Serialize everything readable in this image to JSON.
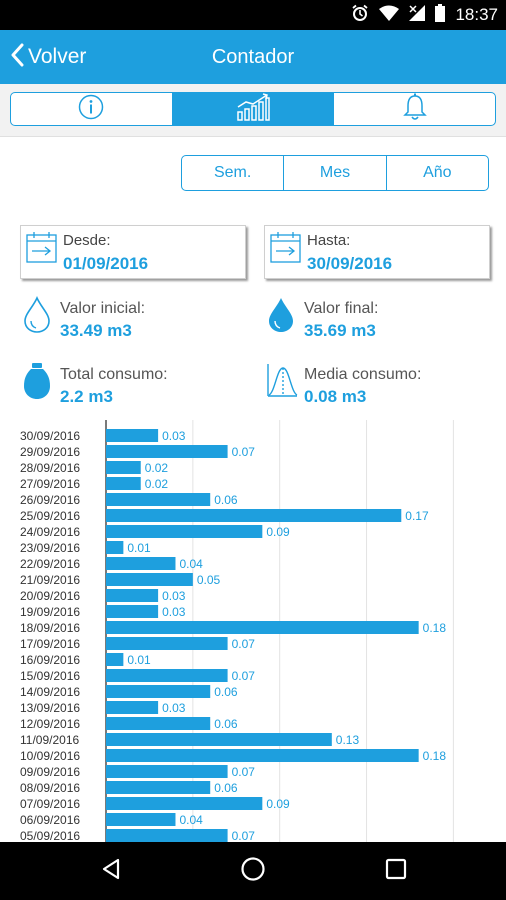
{
  "status_bar": {
    "time": "18:37"
  },
  "app_bar": {
    "back_label": "Volver",
    "title": "Contador"
  },
  "tabs": [
    {
      "name": "info-icon",
      "active": false
    },
    {
      "name": "chart-icon",
      "active": true
    },
    {
      "name": "bell-icon",
      "active": false
    }
  ],
  "period": {
    "week": "Sem.",
    "month": "Mes",
    "year": "Año"
  },
  "range": {
    "from_label": "Desde:",
    "from_value": "01/09/2016",
    "to_label": "Hasta:",
    "to_value": "30/09/2016"
  },
  "stats": {
    "initial_label": "Valor inicial:",
    "initial_value": "33.49 m3",
    "final_label": "Valor final:",
    "final_value": "35.69 m3",
    "total_label": "Total consumo:",
    "total_value": "2.2 m3",
    "average_label": "Media consumo:",
    "average_value": "0.08 m3"
  },
  "colors": {
    "accent": "#1e9fde",
    "bar": "#1e9fde"
  },
  "chart_data": {
    "type": "bar",
    "orientation": "horizontal",
    "categories": [
      "30/09/2016",
      "29/09/2016",
      "28/09/2016",
      "27/09/2016",
      "26/09/2016",
      "25/09/2016",
      "24/09/2016",
      "23/09/2016",
      "22/09/2016",
      "21/09/2016",
      "20/09/2016",
      "19/09/2016",
      "18/09/2016",
      "17/09/2016",
      "16/09/2016",
      "15/09/2016",
      "14/09/2016",
      "13/09/2016",
      "12/09/2016",
      "11/09/2016",
      "10/09/2016",
      "09/09/2016",
      "08/09/2016",
      "07/09/2016",
      "06/09/2016",
      "05/09/2016"
    ],
    "values": [
      0.03,
      0.07,
      0.02,
      0.02,
      0.06,
      0.17,
      0.09,
      0.01,
      0.04,
      0.05,
      0.03,
      0.03,
      0.18,
      0.07,
      0.01,
      0.07,
      0.06,
      0.03,
      0.06,
      0.13,
      0.18,
      0.07,
      0.06,
      0.09,
      0.04,
      0.07
    ],
    "value_labels": [
      "0.03",
      "0.07",
      "0.02",
      "0.02",
      "0.06",
      "0.17",
      "0.09",
      "0.01",
      "0.04",
      "0.05",
      "0.03",
      "0.03",
      "0.18",
      "0.07",
      "0.01",
      "0.07",
      "0.06",
      "0.03",
      "0.06",
      "0.13",
      "0.18",
      "0.07",
      "0.06",
      "0.09",
      "0.04",
      "0.07"
    ],
    "xlim": [
      0,
      0.2
    ],
    "grid": true,
    "title": "",
    "xlabel": "",
    "ylabel": ""
  }
}
